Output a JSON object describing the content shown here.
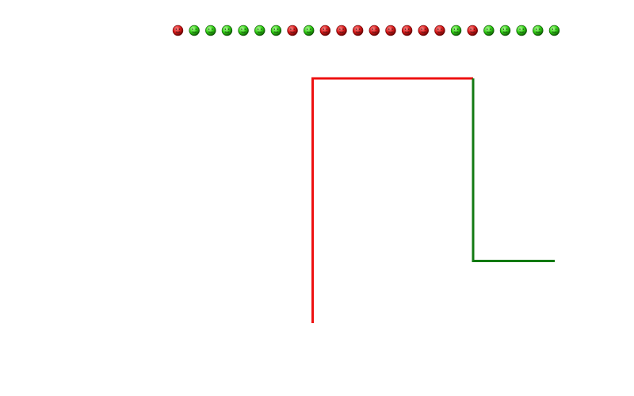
{
  "colors": {
    "background": "#ffffff",
    "red": "#ee1111",
    "green": "#127a12",
    "face_red_light": "#ff8a8a",
    "face_red_mid": "#d81818",
    "face_red_dark": "#5a0000",
    "face_green_light": "#b4ff9a",
    "face_green_mid": "#2ecf12",
    "face_green_dark": "#0a5000"
  },
  "faces": {
    "icon": "smiley-face-icon",
    "sequence": [
      "red",
      "green",
      "green",
      "green",
      "green",
      "green",
      "green",
      "red",
      "green",
      "red",
      "red",
      "red",
      "red",
      "red",
      "red",
      "red",
      "red",
      "green",
      "red",
      "green",
      "green",
      "green",
      "green",
      "green"
    ]
  },
  "path": {
    "segments": [
      {
        "color": "red"
      },
      {
        "color": "red"
      },
      {
        "color": "green"
      },
      {
        "color": "green"
      }
    ]
  }
}
